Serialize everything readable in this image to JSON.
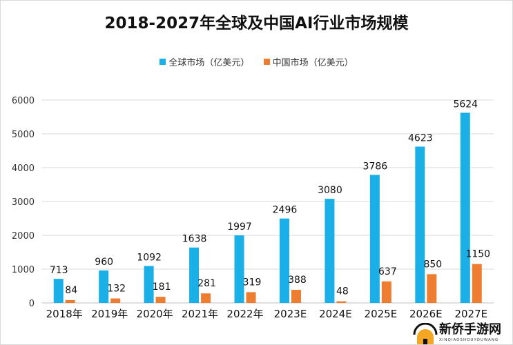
{
  "chart_data": {
    "type": "bar",
    "title": "2018-2027年全球及中国AI行业市场规模",
    "categories": [
      "2018年",
      "2019年",
      "2020年",
      "2021年",
      "2022年",
      "2023E",
      "2024E",
      "2025E",
      "2026E",
      "2027E"
    ],
    "series": [
      {
        "name": "全球市场（亿美元）",
        "color": "#1AAFE6",
        "values": [
          713,
          960,
          1092,
          1638,
          1997,
          2496,
          3080,
          3786,
          4623,
          5624
        ]
      },
      {
        "name": "中国市场（亿美元）",
        "color": "#ED7D31",
        "values": [
          84,
          132,
          181,
          281,
          319,
          388,
          48,
          637,
          850,
          1150
        ]
      }
    ],
    "ylim": [
      0,
      6000
    ],
    "yticks": [
      0,
      1000,
      2000,
      3000,
      4000,
      5000,
      6000
    ],
    "grid": true,
    "legend_position": "top",
    "xlabel": "",
    "ylabel": ""
  },
  "watermark": {
    "text": "新侨手游网",
    "subtext": "XINQIAOSHOUYOUWANG"
  }
}
